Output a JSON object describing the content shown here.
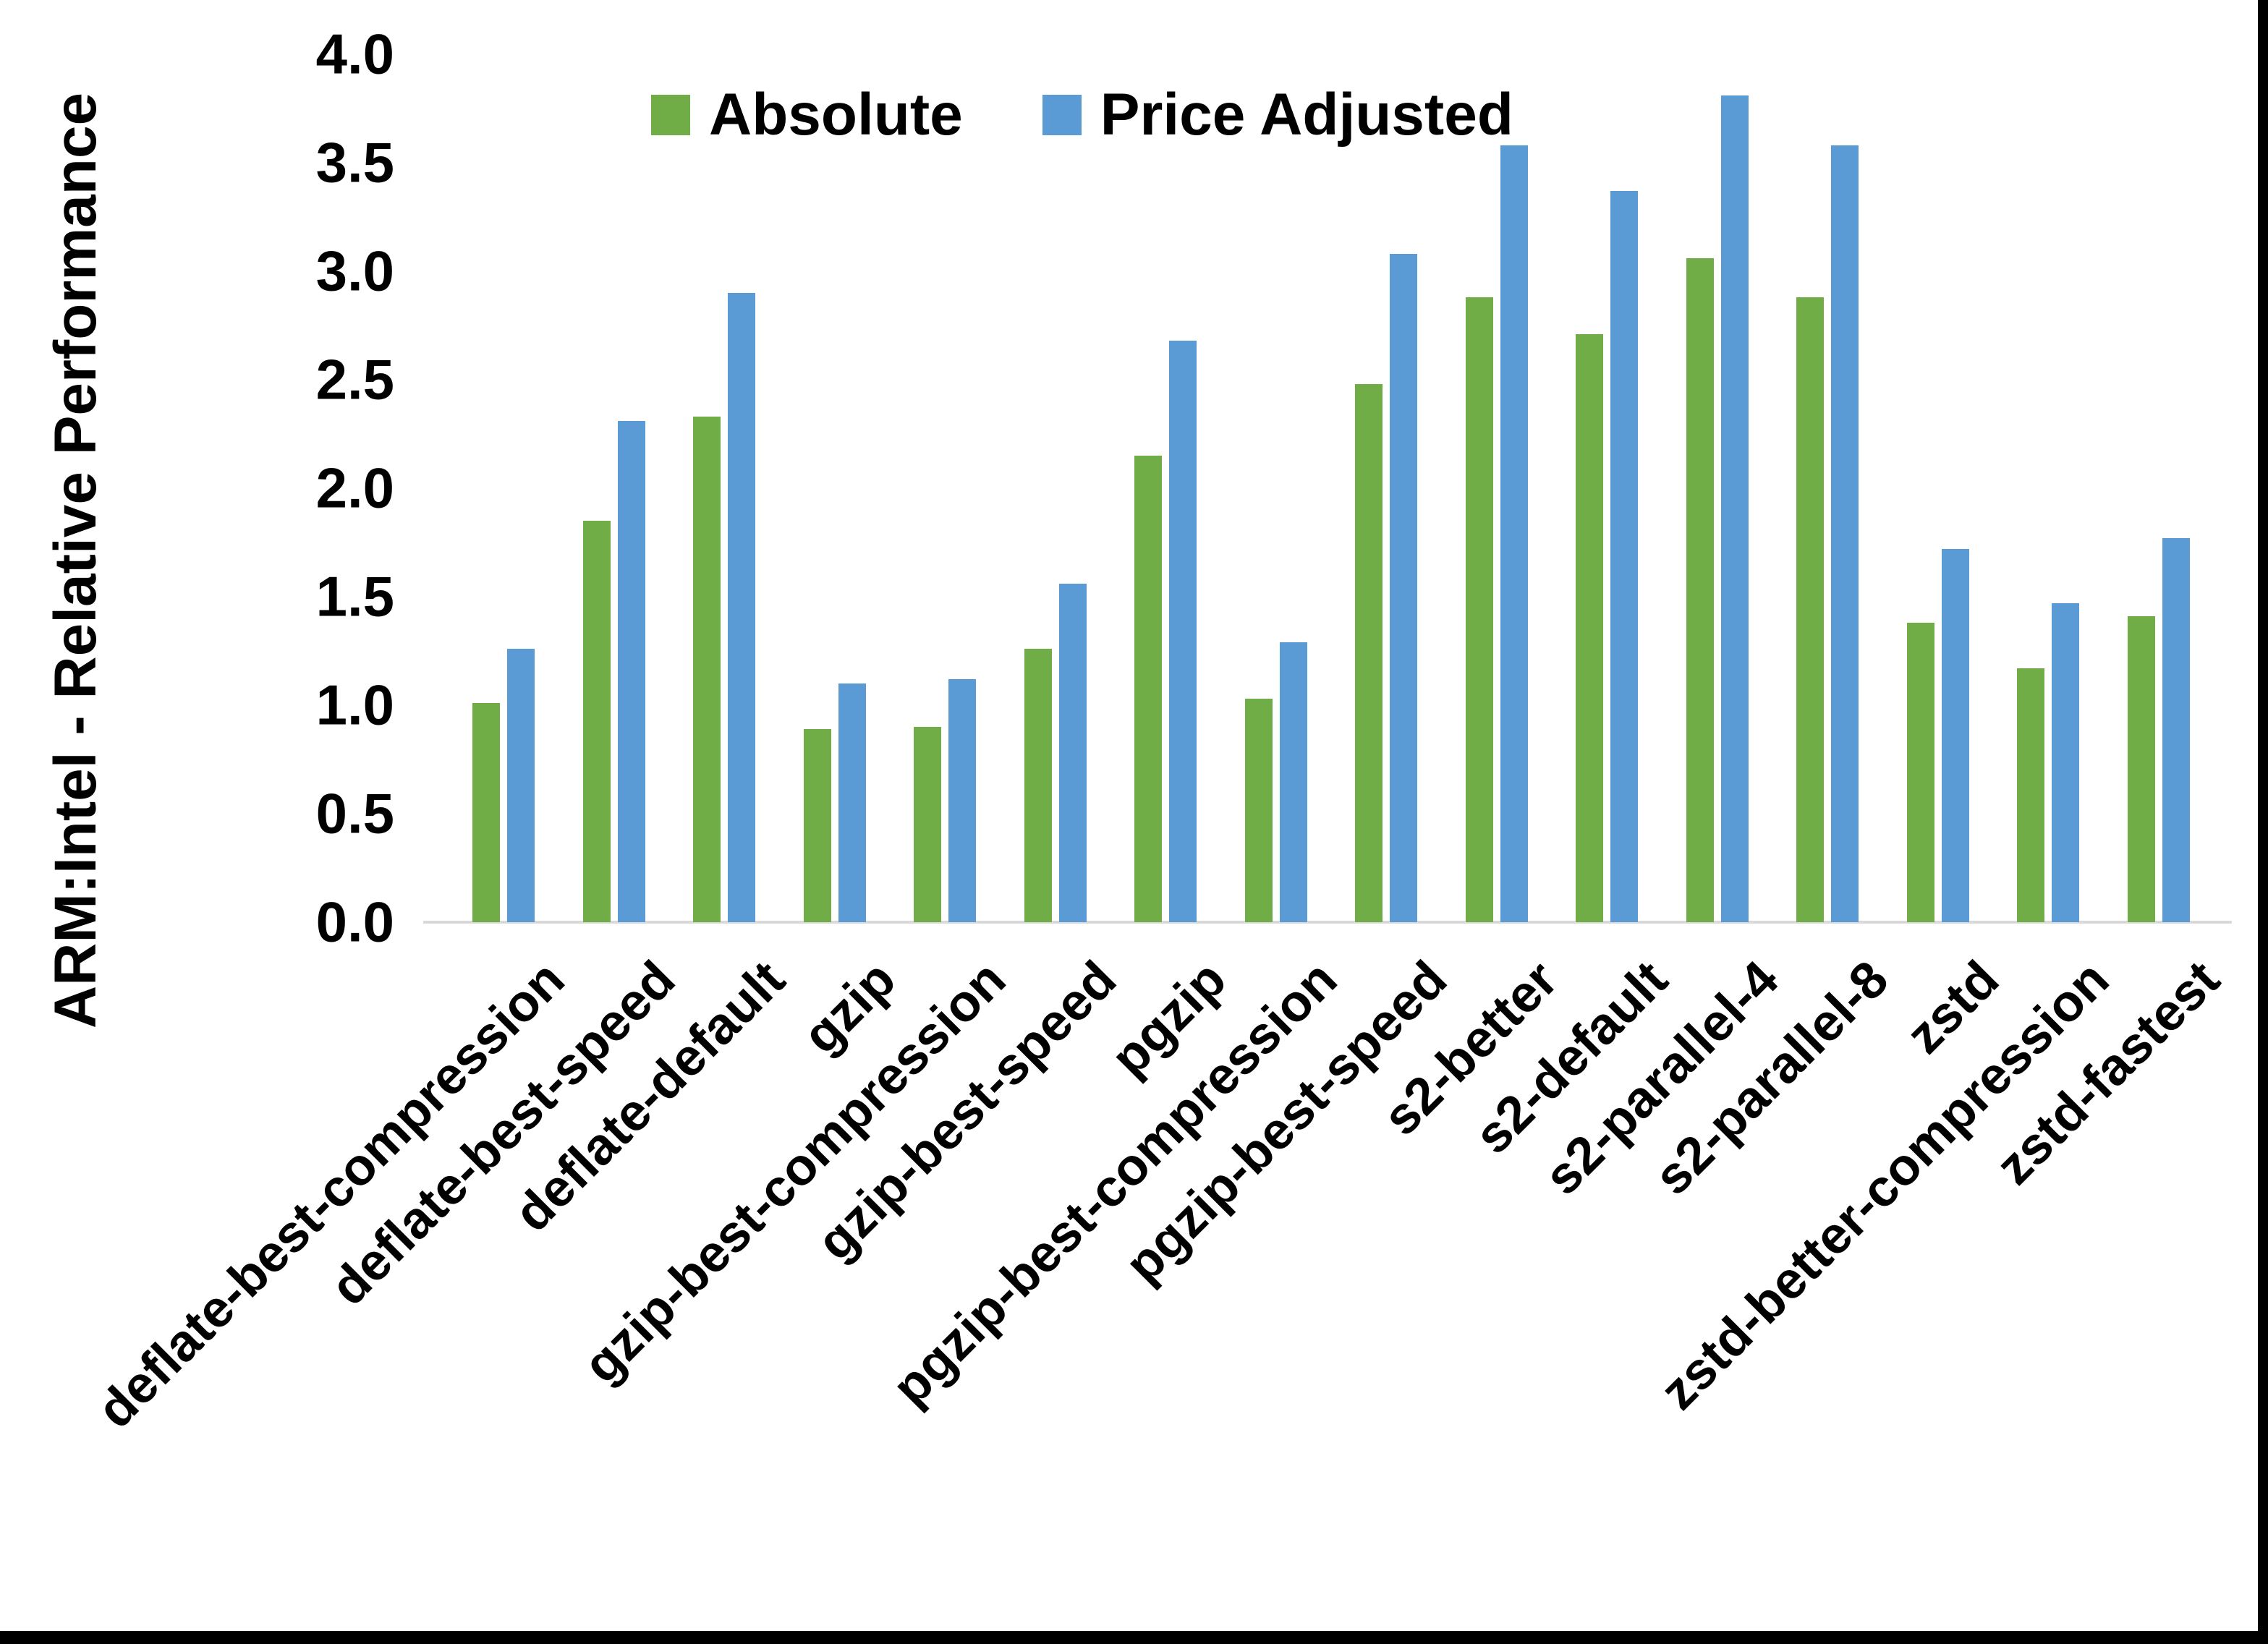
{
  "chart_data": {
    "type": "bar",
    "title": "",
    "xlabel": "",
    "ylabel": "ARM:Intel - Relative Performance",
    "ylim": [
      0.0,
      4.0
    ],
    "ytick_step": 0.5,
    "yticks": [
      "0.0",
      "0.5",
      "1.0",
      "1.5",
      "2.0",
      "2.5",
      "3.0",
      "3.5",
      "4.0"
    ],
    "grid": "off",
    "legend_position": "top-center",
    "categories": [
      "deflate-best-compression",
      "deflate-best-speed",
      "deflate-default",
      "gzip",
      "gzip-best-compression",
      "gzip-best-speed",
      "pgzip",
      "pgzip-best-compression",
      "pgzip-best-speed",
      "s2-better",
      "s2-default",
      "s2-parallel-4",
      "s2-parallel-8",
      "zstd",
      "zstd-better-compression",
      "zstd-fastest"
    ],
    "series": [
      {
        "name": "Absolute",
        "color": "#70AD47",
        "values": [
          1.01,
          1.85,
          2.33,
          0.89,
          0.9,
          1.26,
          2.15,
          1.03,
          2.48,
          2.88,
          2.71,
          3.06,
          2.88,
          1.38,
          1.17,
          1.41
        ]
      },
      {
        "name": "Price Adjusted",
        "color": "#5B9BD5",
        "values": [
          1.26,
          2.31,
          2.9,
          1.1,
          1.12,
          1.56,
          2.68,
          1.29,
          3.08,
          3.58,
          3.37,
          3.81,
          3.58,
          1.72,
          1.47,
          1.77
        ]
      }
    ]
  },
  "colors": {
    "absolute": "#70AD47",
    "price_adjusted": "#5B9BD5",
    "axis_line": "#D9D9D9",
    "text": "#000000",
    "background": "#FFFFFF",
    "frame": "#000000"
  }
}
